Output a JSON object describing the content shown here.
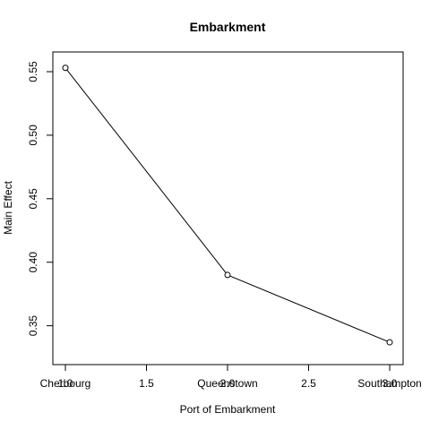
{
  "chart_data": {
    "type": "line",
    "title": "Embarkment",
    "xlabel": "Port of Embarkment",
    "ylabel": "Main Effect",
    "xlim": [
      1.0,
      3.0
    ],
    "ylim": [
      0.33,
      0.562
    ],
    "x_ticks": [
      1.0,
      1.5,
      2.0,
      2.5,
      3.0
    ],
    "x_tick_labels": [
      "1.0",
      "1.5",
      "2.0",
      "2.5",
      "3.0"
    ],
    "y_ticks": [
      0.35,
      0.4,
      0.45,
      0.5,
      0.55
    ],
    "y_tick_labels": [
      "0.35",
      "0.40",
      "0.45",
      "0.50",
      "0.55"
    ],
    "categories": [
      "Cherbourg",
      "Queenstown",
      "Southampton"
    ],
    "series": [
      {
        "name": "Main Effect",
        "x": [
          1,
          2,
          3
        ],
        "values": [
          0.553,
          0.39,
          0.337
        ],
        "marker": "open-circle",
        "color": "#000000"
      }
    ],
    "grid": false,
    "legend": "none"
  }
}
